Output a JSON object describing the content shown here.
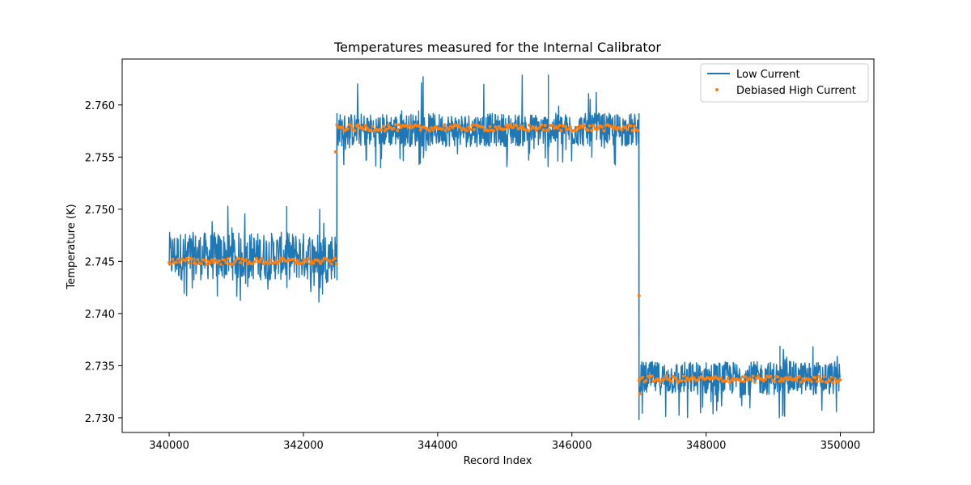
{
  "chart_data": {
    "type": "line",
    "title": "Temperatures measured for the Internal Calibrator",
    "xlabel": "Record Index",
    "ylabel": "Temperature (K)",
    "xlim": [
      339300,
      350500
    ],
    "ylim": [
      2.7286,
      2.7644
    ],
    "xticks": [
      340000,
      342000,
      344000,
      346000,
      348000,
      350000
    ],
    "xtick_labels": [
      "340000",
      "342000",
      "344000",
      "346000",
      "348000",
      "350000"
    ],
    "yticks": [
      2.73,
      2.735,
      2.74,
      2.745,
      2.75,
      2.755,
      2.76
    ],
    "ytick_labels": [
      "2.730",
      "2.735",
      "2.740",
      "2.745",
      "2.750",
      "2.755",
      "2.760"
    ],
    "legend_position": "top-right",
    "segments": [
      {
        "x_start": 340000,
        "x_end": 342500,
        "low_current_mean": 2.7451,
        "debiased_high_current": 2.745,
        "band_low": 2.7432,
        "band_high": 2.7478,
        "min": 2.7409,
        "max": 2.7503
      },
      {
        "x_start": 342500,
        "x_end": 347000,
        "low_current_mean": 2.7576,
        "debiased_high_current": 2.7578,
        "band_low": 2.756,
        "band_high": 2.7592,
        "min": 2.7538,
        "max": 2.7629
      },
      {
        "x_start": 347000,
        "x_end": 350000,
        "low_current_mean": 2.7338,
        "debiased_high_current": 2.7337,
        "band_low": 2.7322,
        "band_high": 2.7354,
        "min": 2.7298,
        "max": 2.7369
      }
    ],
    "outliers": [
      {
        "x": 342480,
        "y": 2.7555
      },
      {
        "x": 347000,
        "y": 2.7417
      },
      {
        "x": 347010,
        "y": 2.7323
      }
    ],
    "series": [
      {
        "name": "Low Current",
        "kind": "line",
        "color": "#1f77b4"
      },
      {
        "name": "Debiased High Current",
        "kind": "scatter",
        "color": "#ff7f0e"
      }
    ]
  }
}
